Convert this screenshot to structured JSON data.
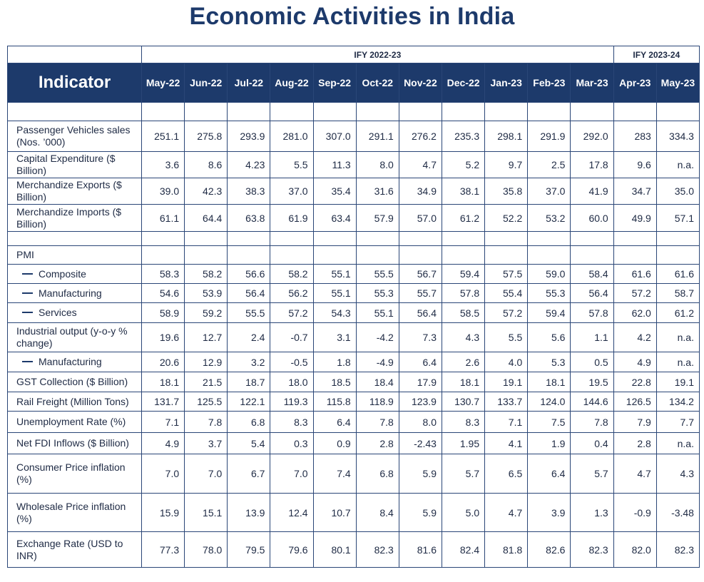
{
  "title": "Economic Activities in India",
  "header": {
    "fy_2223": "IFY 2022-23",
    "fy_2324": "IFY 2023-24",
    "indicator_label": "Indicator",
    "months": [
      "May-22",
      "Jun-22",
      "Jul-22",
      "Aug-22",
      "Sep-22",
      "Oct-22",
      "Nov-22",
      "Dec-22",
      "Jan-23",
      "Feb-23",
      "Mar-23",
      "Apr-23",
      "May-23"
    ]
  },
  "rows": [
    {
      "label": "",
      "values": [
        "",
        "",
        "",
        "",
        "",
        "",
        "",
        "",
        "",
        "",
        "",
        "",
        ""
      ]
    },
    {
      "label": "Passenger Vehicles sales (Nos. ’000)",
      "values": [
        "251.1",
        "275.8",
        "293.9",
        "281.0",
        "307.0",
        "291.1",
        "276.2",
        "235.3",
        "298.1",
        "291.9",
        "292.0",
        "283",
        "334.3"
      ]
    },
    {
      "label": "Capital Expenditure ($ Billion)",
      "values": [
        "3.6",
        "8.6",
        "4.23",
        "5.5",
        "11.3",
        "8.0",
        "4.7",
        "5.2",
        "9.7",
        "2.5",
        "17.8",
        "9.6",
        "n.a."
      ]
    },
    {
      "label": "Merchandize Exports ($ Billion)",
      "values": [
        "39.0",
        "42.3",
        "38.3",
        "37.0",
        "35.4",
        "31.6",
        "34.9",
        "38.1",
        "35.8",
        "37.0",
        "41.9",
        "34.7",
        "35.0"
      ]
    },
    {
      "label": "Merchandize Imports ($ Billion)",
      "values": [
        "61.1",
        "64.4",
        "63.8",
        "61.9",
        "63.4",
        "57.9",
        "57.0",
        "61.2",
        "52.2",
        "53.2",
        "60.0",
        "49.9",
        "57.1"
      ]
    },
    {
      "label": "",
      "values": [
        "",
        "",
        "",
        "",
        "",
        "",
        "",
        "",
        "",
        "",
        "",
        "",
        ""
      ]
    },
    {
      "label": "PMI",
      "values": [
        "",
        "",
        "",
        "",
        "",
        "",
        "",
        "",
        "",
        "",
        "",
        "",
        ""
      ]
    },
    {
      "label": "Composite",
      "values": [
        "58.3",
        "58.2",
        "56.6",
        "58.2",
        "55.1",
        "55.5",
        "56.7",
        "59.4",
        "57.5",
        "59.0",
        "58.4",
        "61.6",
        "61.6"
      ]
    },
    {
      "label": "Manufacturing",
      "values": [
        "54.6",
        "53.9",
        "56.4",
        "56.2",
        "55.1",
        "55.3",
        "55.7",
        "57.8",
        "55.4",
        "55.3",
        "56.4",
        "57.2",
        "58.7"
      ]
    },
    {
      "label": "Services",
      "values": [
        "58.9",
        "59.2",
        "55.5",
        "57.2",
        "54.3",
        "55.1",
        "56.4",
        "58.5",
        "57.2",
        "59.4",
        "57.8",
        "62.0",
        "61.2"
      ]
    },
    {
      "label": "Industrial output (y-o-y % change)",
      "values": [
        "19.6",
        "12.7",
        "2.4",
        "-0.7",
        "3.1",
        "-4.2",
        "7.3",
        "4.3",
        "5.5",
        "5.6",
        "1.1",
        "4.2",
        "n.a."
      ]
    },
    {
      "label": "Manufacturing",
      "values": [
        "20.6",
        "12.9",
        "3.2",
        "-0.5",
        "1.8",
        "-4.9",
        "6.4",
        "2.6",
        "4.0",
        "5.3",
        "0.5",
        "4.9",
        "n.a."
      ]
    },
    {
      "label": "GST Collection ($ Billion)",
      "values": [
        "18.1",
        "21.5",
        "18.7",
        "18.0",
        "18.5",
        "18.4",
        "17.9",
        "18.1",
        "19.1",
        "18.1",
        "19.5",
        "22.8",
        "19.1"
      ]
    },
    {
      "label": "Rail Freight (Million Tons)",
      "values": [
        "131.7",
        "125.5",
        "122.1",
        "119.3",
        "115.8",
        "118.9",
        "123.9",
        "130.7",
        "133.7",
        "124.0",
        "144.6",
        "126.5",
        "134.2"
      ]
    },
    {
      "label": "Unemployment Rate (%)",
      "values": [
        "7.1",
        "7.8",
        "6.8",
        "8.3",
        "6.4",
        "7.8",
        "8.0",
        "8.3",
        "7.1",
        "7.5",
        "7.8",
        "7.9",
        "7.7"
      ]
    },
    {
      "label": "Net FDI Inflows ($ Billion)",
      "values": [
        "4.9",
        "3.7",
        "5.4",
        "0.3",
        "0.9",
        "2.8",
        "-2.43",
        "1.95",
        "4.1",
        "1.9",
        "0.4",
        "2.8",
        "n.a."
      ]
    },
    {
      "label": "Consumer Price inflation (%)",
      "values": [
        "7.0",
        "7.0",
        "6.7",
        "7.0",
        "7.4",
        "6.8",
        "5.9",
        "5.7",
        "6.5",
        "6.4",
        "5.7",
        "4.7",
        "4.3"
      ]
    },
    {
      "label": "Wholesale Price inflation (%)",
      "values": [
        "15.9",
        "15.1",
        "13.9",
        "12.4",
        "10.7",
        "8.4",
        "5.9",
        "5.0",
        "4.7",
        "3.9",
        "1.3",
        "-0.9",
        "-3.48"
      ]
    },
    {
      "label": "Exchange Rate (USD to INR)",
      "values": [
        "77.3",
        "78.0",
        "79.5",
        "79.6",
        "80.1",
        "82.3",
        "81.6",
        "82.4",
        "81.8",
        "82.6",
        "82.3",
        "82.0",
        "82.3"
      ]
    }
  ]
}
